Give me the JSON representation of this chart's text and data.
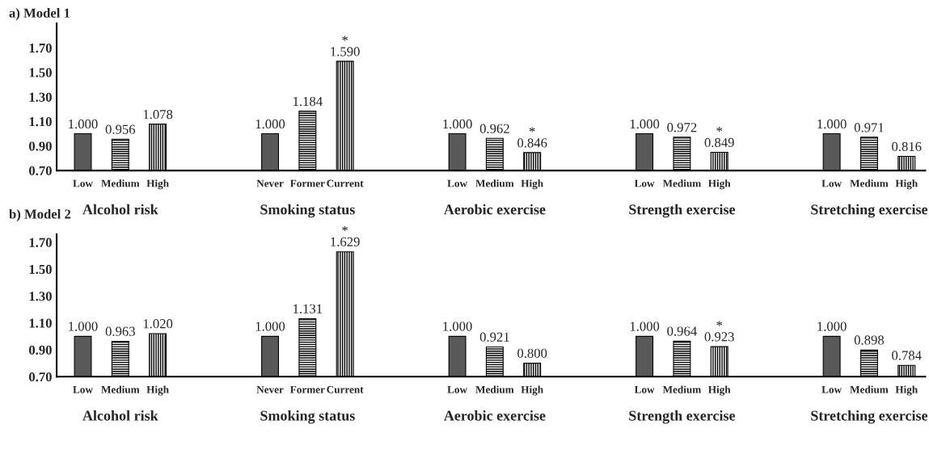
{
  "chart_data": [
    {
      "type": "bar",
      "title": "a) Model 1",
      "categories": [
        "Low",
        "Medium",
        "High",
        null,
        null,
        "Never",
        "Former",
        "Current",
        null,
        null,
        "Low",
        "Medium",
        "High",
        null,
        null,
        "Low",
        "Medium",
        "High",
        null,
        null,
        "Low",
        "Medium",
        "High"
      ],
      "values": [
        1.0,
        0.956,
        1.078,
        null,
        null,
        1.0,
        1.184,
        1.59,
        null,
        null,
        1.0,
        0.962,
        0.846,
        null,
        null,
        1.0,
        0.972,
        0.849,
        null,
        null,
        1.0,
        0.971,
        0.816
      ],
      "value_labels": [
        "1.000",
        "0.956",
        "1.078",
        null,
        null,
        "1.000",
        "1.184",
        "*\n1.590",
        null,
        null,
        "1.000",
        "0.962",
        "*\n0.846",
        null,
        null,
        "1.000",
        "0.972",
        "*\n0.849",
        null,
        null,
        "1.000",
        "0.971",
        "0.816"
      ],
      "colors": [
        "#595959",
        "#000000",
        "#000000",
        null,
        null,
        "#595959",
        "#000000",
        "#000000",
        null,
        null,
        "#595959",
        "#000000",
        "#000000",
        null,
        null,
        "#595959",
        "#000000",
        "#000000",
        null,
        null,
        "#595959",
        "#000000",
        "#000000"
      ],
      "annotations": [
        "Alcohol risk",
        "Smoking status",
        "Aerobic exercise",
        "Strength exercise",
        "Stretching exercise"
      ],
      "ylim": [
        0.7,
        1.9
      ],
      "yticks": [
        {
          "value": 0.7,
          "label": "0.70"
        },
        {
          "value": 0.9,
          "label": "0.90"
        },
        {
          "value": 1.1,
          "label": "1.10"
        },
        {
          "value": 1.3,
          "label": "1.30"
        },
        {
          "value": 1.5,
          "label": "1.50"
        },
        {
          "value": 1.7,
          "label": "1.70"
        }
      ]
    },
    {
      "type": "bar",
      "title": "b) Model 2",
      "categories": [
        "Low",
        "Medium",
        "High",
        null,
        null,
        "Never",
        "Former",
        "Current",
        null,
        null,
        "Low",
        "Medium",
        "High",
        null,
        null,
        "Low",
        "Medium",
        "High",
        null,
        null,
        "Low",
        "Medium",
        "High"
      ],
      "values": [
        1.0,
        0.963,
        1.02,
        null,
        null,
        1.0,
        1.131,
        1.629,
        null,
        null,
        1.0,
        0.921,
        0.8,
        null,
        null,
        1.0,
        0.964,
        0.923,
        null,
        null,
        1.0,
        0.898,
        0.784
      ],
      "value_labels": [
        "1.000",
        "0.963",
        "1.020",
        null,
        null,
        "1.000",
        "1.131",
        "*\n1.629",
        null,
        null,
        "1.000",
        "0.921",
        "0.800",
        null,
        null,
        "1.000",
        "0.964",
        "*\n0.923",
        null,
        null,
        "1.000",
        "0.898",
        "0.784"
      ],
      "colors": [
        "#595959",
        "#000000",
        "#000000",
        null,
        null,
        "#595959",
        "#000000",
        "#000000",
        null,
        null,
        "#595959",
        "#000000",
        "#000000",
        null,
        null,
        "#595959",
        "#000000",
        "#000000",
        null,
        null,
        "#595959",
        "#000000",
        "#000000"
      ],
      "annotations": [
        "Alcohol risk",
        "Smoking status",
        "Aerobic exercise",
        "Strength exercise",
        "Stretching exercise"
      ],
      "ylim": [
        0.7,
        1.76
      ],
      "yticks": [
        {
          "value": 0.7,
          "label": "0.70"
        },
        {
          "value": 0.9,
          "label": "0.90"
        },
        {
          "value": 1.1,
          "label": "1.10"
        },
        {
          "value": 1.3,
          "label": "1.30"
        },
        {
          "value": 1.5,
          "label": "1.50"
        },
        {
          "value": 1.7,
          "label": "1.70"
        }
      ]
    }
  ]
}
